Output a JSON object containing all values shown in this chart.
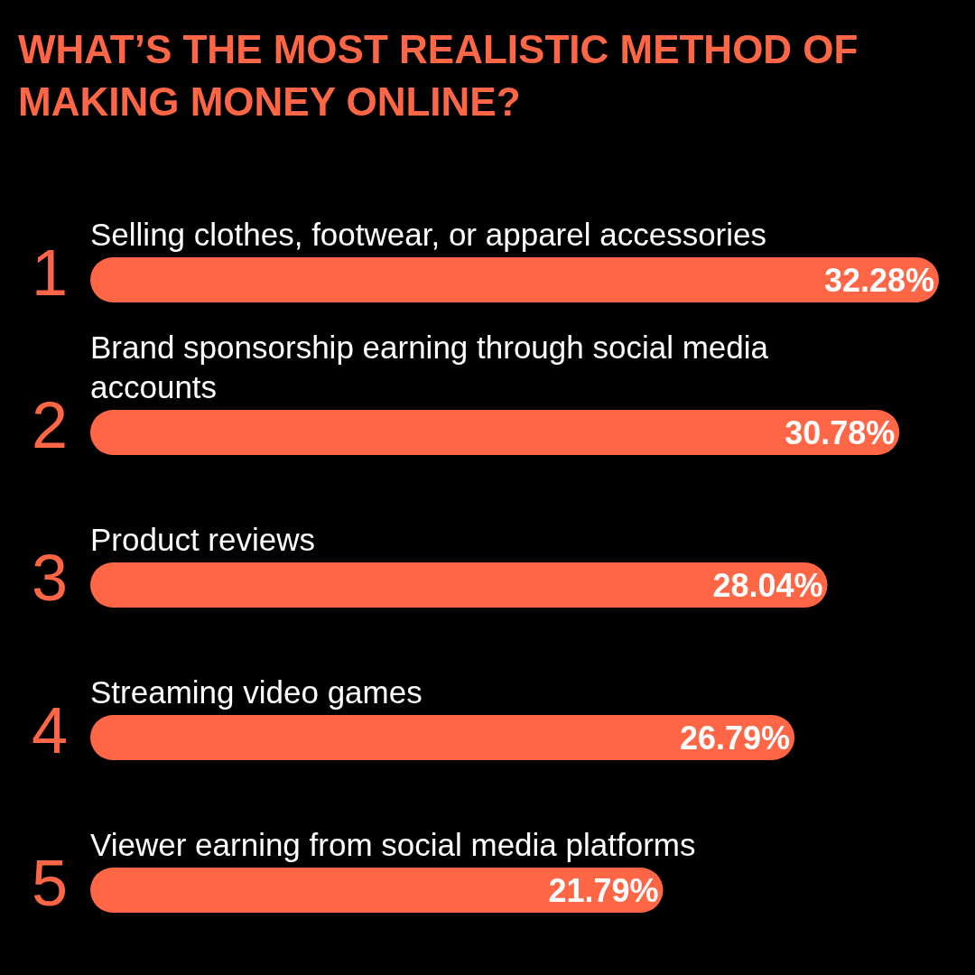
{
  "chart_data": {
    "type": "bar",
    "orientation": "horizontal",
    "title": "WHAT’S THE MOST REALISTIC METHOD OF MAKING MONEY ONLINE?",
    "categories": [
      "Selling clothes, footwear, or apparel accessories",
      "Brand sponsorship earning through social media accounts",
      "Product reviews",
      "Streaming video games",
      "Viewer earning from social media platforms"
    ],
    "values": [
      32.28,
      30.78,
      28.04,
      26.79,
      21.79
    ],
    "value_labels": [
      "32.28%",
      "30.78%",
      "28.04%",
      "26.79%",
      "21.79%"
    ],
    "color": "#ff6645",
    "annotations": [
      "1",
      "2",
      "3",
      "4",
      "5"
    ]
  }
}
